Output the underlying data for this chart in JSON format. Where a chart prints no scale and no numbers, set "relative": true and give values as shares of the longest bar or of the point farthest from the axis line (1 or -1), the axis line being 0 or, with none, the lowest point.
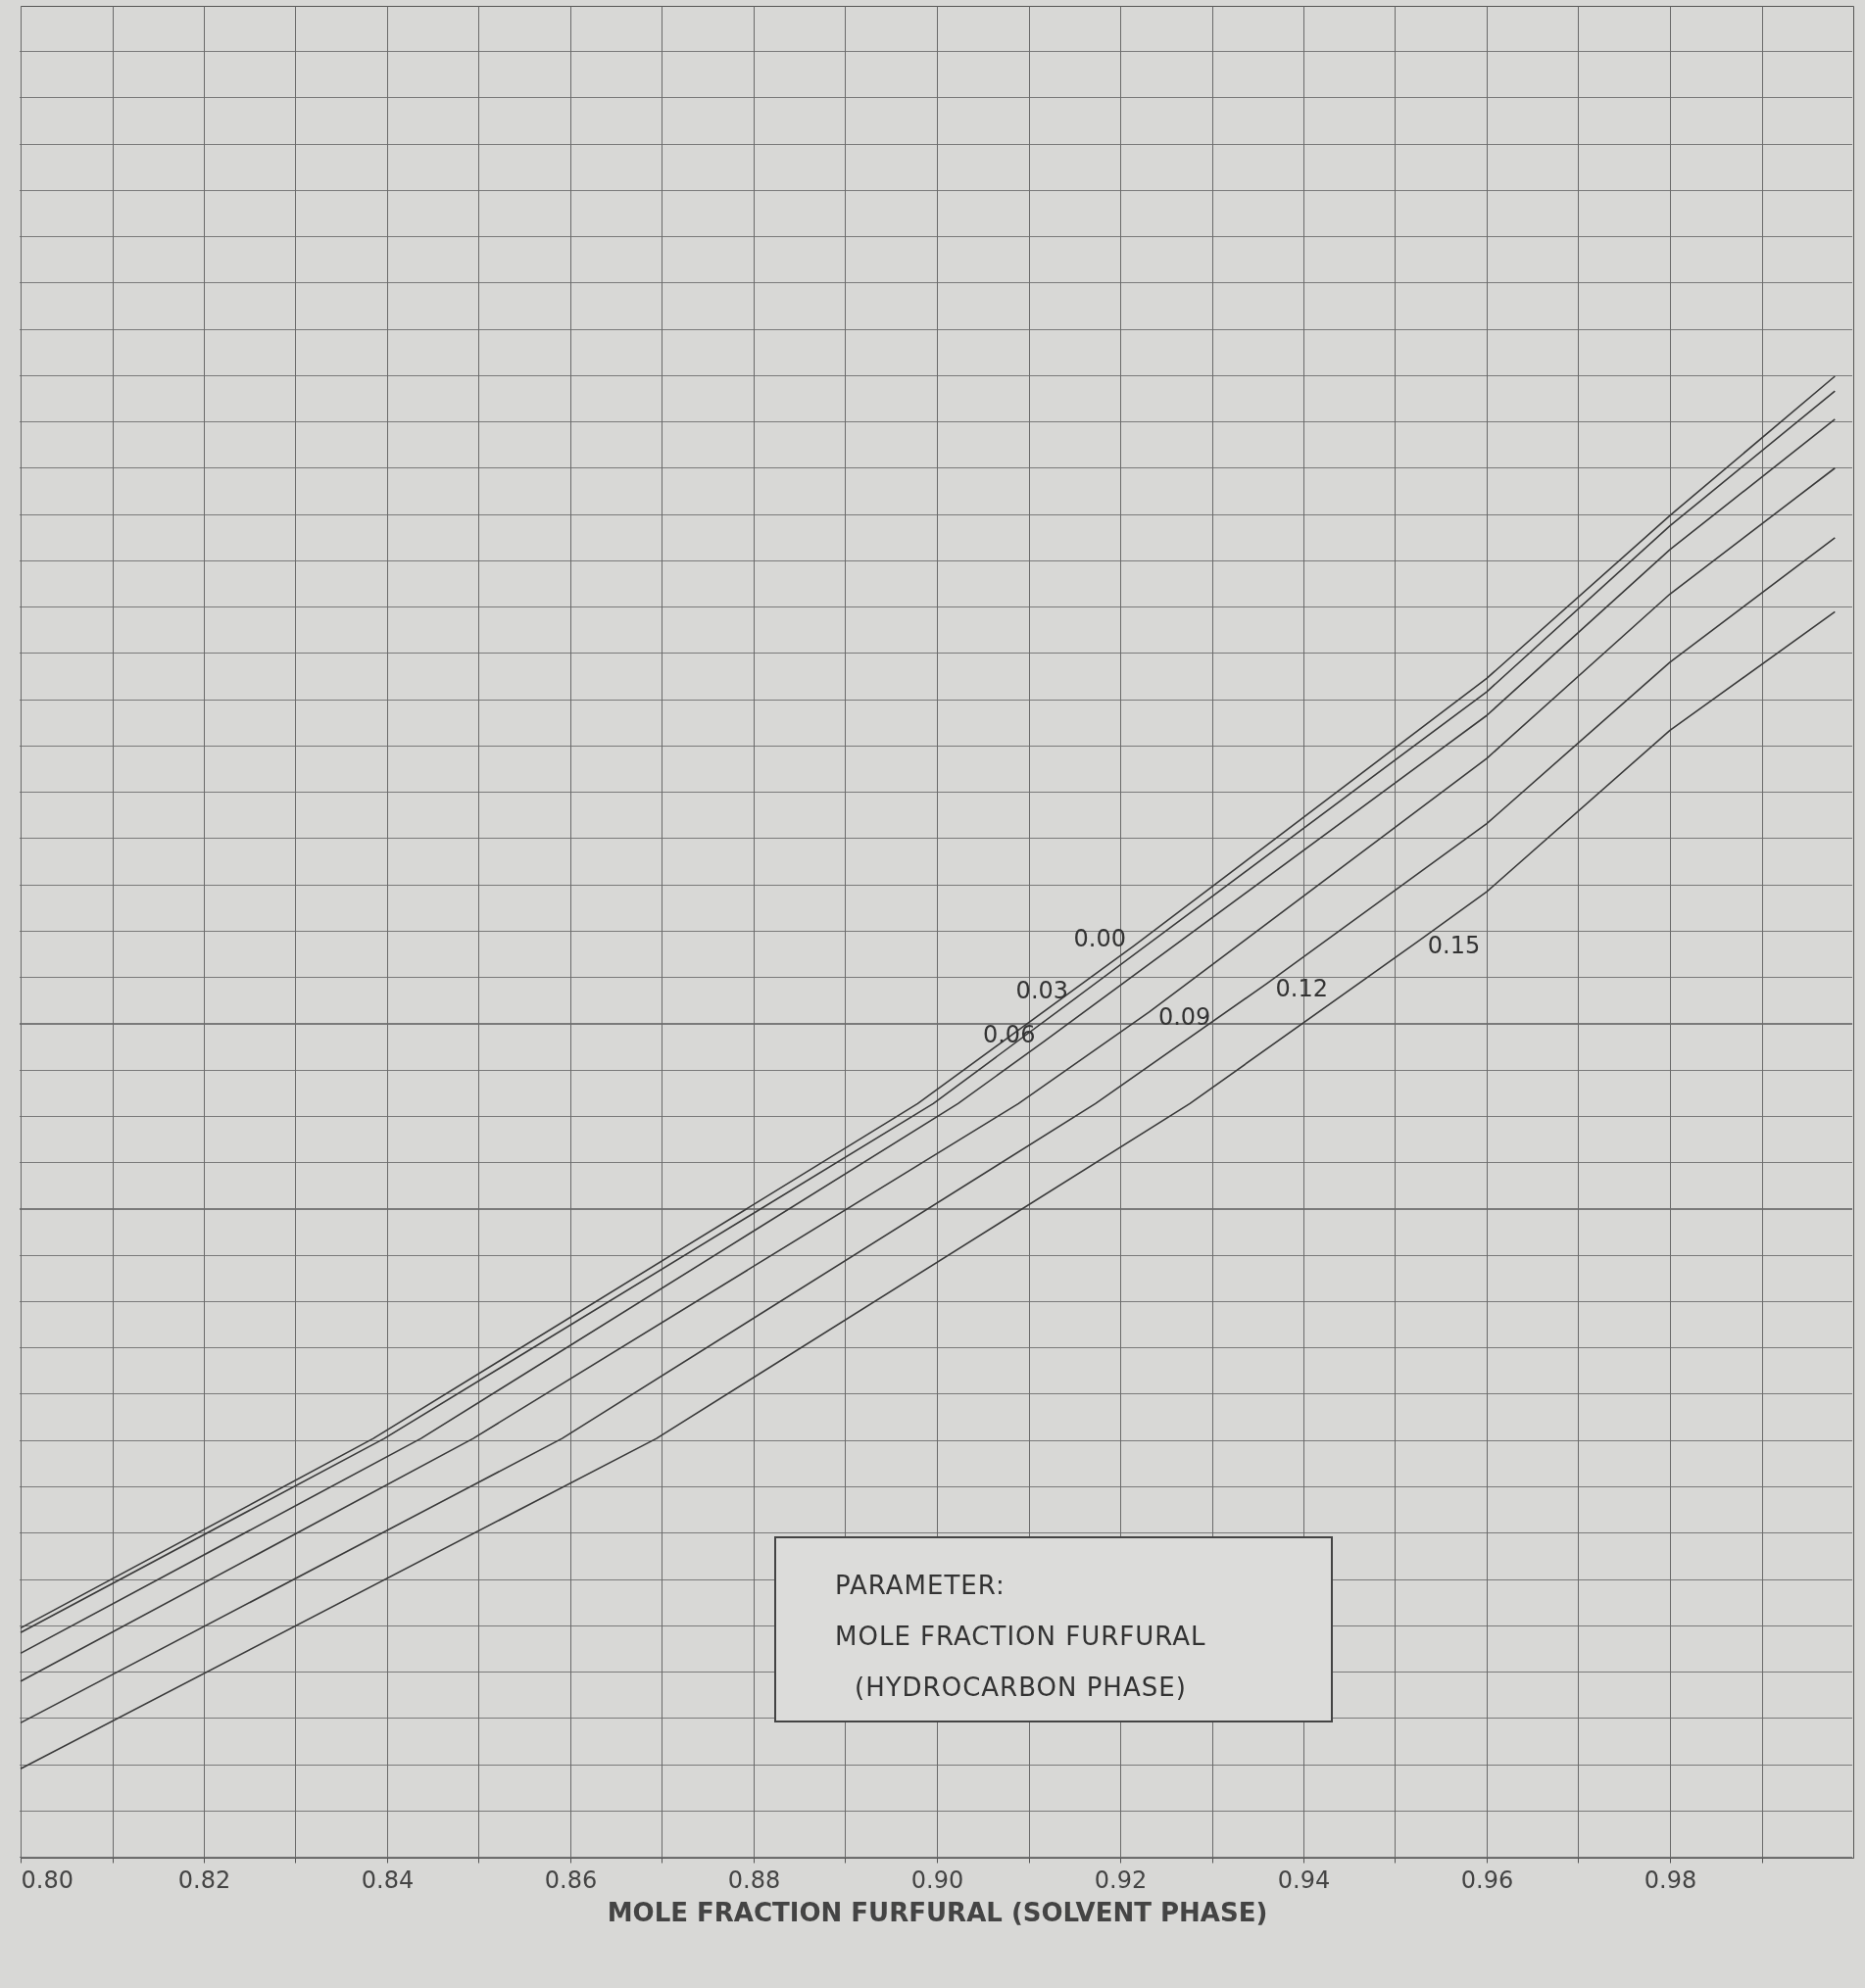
{
  "chart_data": {
    "type": "line",
    "relative": true,
    "xlabel": "MOLE FRACTION FURFURAL  (SOLVENT PHASE)",
    "xlim": [
      0.8,
      1.0
    ],
    "xticks": [
      {
        "value": 0.8,
        "label": "0.80"
      },
      {
        "value": 0.81,
        "label": null
      },
      0.82,
      {
        "value": 0.83,
        "label": null
      },
      0.84,
      {
        "value": 0.85,
        "label": null
      },
      0.86,
      {
        "value": 0.87,
        "label": null
      },
      0.88,
      {
        "value": 0.89,
        "label": null
      },
      {
        "value": 0.9,
        "label": "0.90"
      },
      {
        "value": 0.91,
        "label": null
      },
      0.92,
      {
        "value": 0.93,
        "label": null
      },
      0.94,
      {
        "value": 0.95,
        "label": null
      },
      0.96,
      {
        "value": 0.97,
        "label": null
      },
      0.98,
      {
        "value": 0.99,
        "label": null
      }
    ],
    "grid": true,
    "series": [
      {
        "name": "0.00",
        "color": "#3a3a3a",
        "x": [
          0.8,
          0.8385,
          0.8979,
          0.9216,
          0.96,
          0.98,
          0.998
        ],
        "values": [
          0.155,
          0.283,
          0.509,
          0.616,
          0.796,
          0.906,
          1.0
        ]
      },
      {
        "name": "0.03",
        "color": "#3a3a3a",
        "x": [
          0.8,
          0.8397,
          0.8996,
          0.9153,
          0.96,
          0.98,
          0.998
        ],
        "values": [
          0.152,
          0.283,
          0.509,
          0.581,
          0.787,
          0.899,
          0.99
        ]
      },
      {
        "name": "0.06",
        "color": "#3a3a3a",
        "x": [
          0.8,
          0.8437,
          0.9023,
          0.9117,
          0.96,
          0.98,
          0.998
        ],
        "values": [
          0.138,
          0.283,
          0.509,
          0.551,
          0.771,
          0.883,
          0.971
        ]
      },
      {
        "name": "0.09",
        "color": "#3a3a3a",
        "x": [
          0.8,
          0.8494,
          0.9089,
          0.9232,
          0.96,
          0.98,
          0.998
        ],
        "values": [
          0.119,
          0.283,
          0.509,
          0.571,
          0.742,
          0.853,
          0.938
        ]
      },
      {
        "name": "0.12",
        "color": "#3a3a3a",
        "x": [
          0.8,
          0.8591,
          0.9173,
          0.936,
          0.96,
          0.98,
          0.998
        ],
        "values": [
          0.091,
          0.283,
          0.509,
          0.59,
          0.698,
          0.807,
          0.891
        ]
      },
      {
        "name": "0.15",
        "color": "#3a3a3a",
        "x": [
          0.8,
          0.8694,
          0.9276,
          0.9526,
          0.96,
          0.98,
          0.998
        ],
        "values": [
          0.06,
          0.283,
          0.509,
          0.619,
          0.652,
          0.761,
          0.841
        ]
      }
    ],
    "annotations": [
      "PARAMETER:",
      "MOLE FRACTION FURFURAL",
      "(HYDROCARBON PHASE)"
    ]
  }
}
